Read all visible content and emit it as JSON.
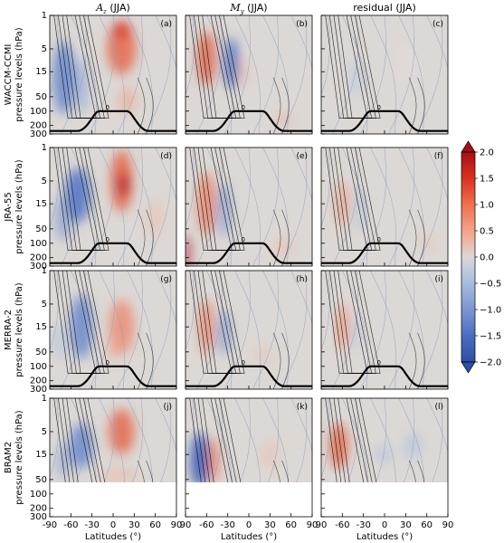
{
  "chart_data": {
    "type": "heatmap",
    "column_titles": [
      {
        "symbol": "A",
        "sub": "z",
        "suffix": " (JJA)"
      },
      {
        "symbol": "M",
        "sub": "y",
        "suffix": " (JJA)"
      },
      {
        "symbol": "",
        "sub": "",
        "suffix": "residual (JJA)"
      }
    ],
    "row_labels": [
      "WACCM-CCMI",
      "JRA-55",
      "MERRA-2",
      "BRAM2"
    ],
    "ylabel": "pressure levels (hPa)",
    "xlabel": "Latitudes (°)",
    "panel_letters": [
      "(a)",
      "(b)",
      "(c)",
      "(d)",
      "(e)",
      "(f)",
      "(g)",
      "(h)",
      "(i)",
      "(j)",
      "(k)",
      "(l)"
    ],
    "x_ticks": [
      "-90",
      "-60",
      "-30",
      "0",
      "30",
      "60",
      "90"
    ],
    "x_ticks_first_col": [
      "-90",
      "-60",
      "-30",
      "0",
      "30",
      "60",
      "90"
    ],
    "x_ticks_other_col": [
      "90",
      "-60",
      "-30",
      "0",
      "30",
      "60",
      "90"
    ],
    "y_ticks": [
      "1",
      "5",
      "15",
      "50",
      "100",
      "200",
      "300"
    ],
    "xlim": [
      -90,
      90
    ],
    "ylim_hpa": [
      300,
      1
    ],
    "y_scale": "log",
    "colorbar": {
      "ticks": [
        "2.0",
        "1.5",
        "1.0",
        "0.5",
        "0.0",
        "−0.5",
        "−1.0",
        "−1.5",
        "−2.0"
      ],
      "range": [
        -2.0,
        2.0
      ],
      "extend": "both"
    },
    "contour_label": "0",
    "missing_data_below_hpa_in_row": {
      "row": "BRAM2",
      "hpa": 70
    },
    "colors": {
      "neutral": "#dcd8d5",
      "positive_max": "#a50f15",
      "negative_max": "#2c4ea3",
      "contour_dark": "#000000",
      "contour_light": "#8fa3c7"
    }
  }
}
